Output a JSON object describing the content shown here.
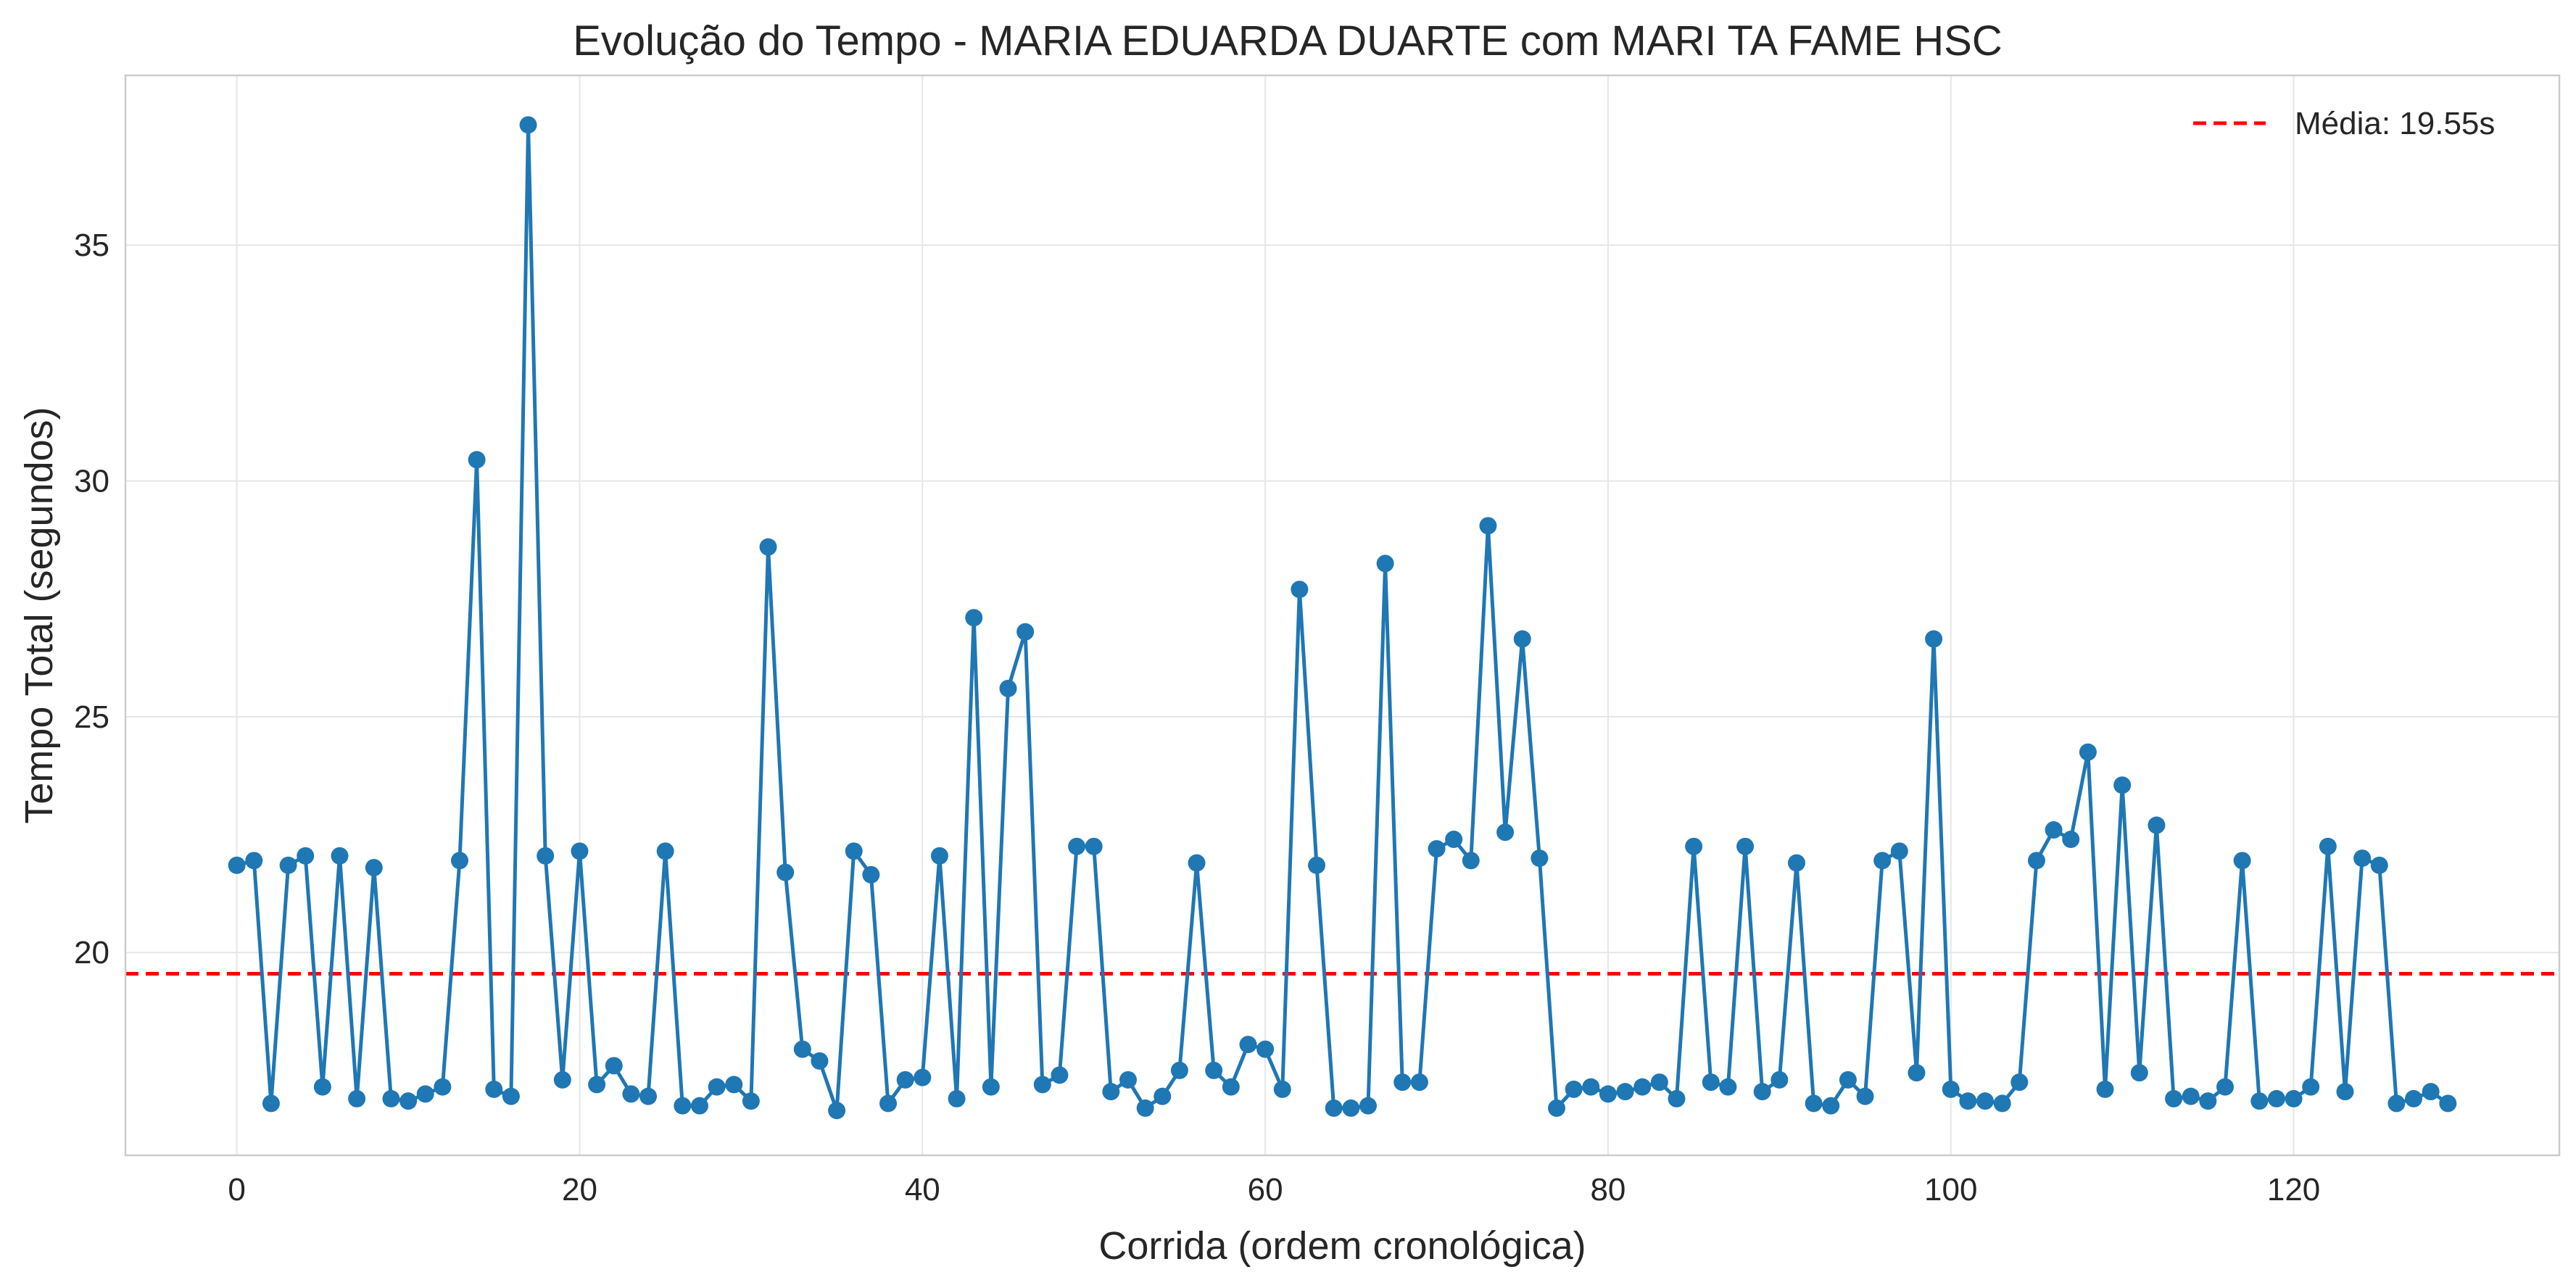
{
  "chart_data": {
    "type": "line",
    "title": "Evolução do Tempo - MARIA EDUARDA DUARTE com MARI TA FAME HSC",
    "xlabel": "Corrida (ordem cronológica)",
    "ylabel": "Tempo Total (segundos)",
    "xlim": [
      -6.5,
      135.5
    ],
    "ylim": [
      15.7,
      38.6
    ],
    "xticks": [
      0,
      20,
      40,
      60,
      80,
      100,
      120
    ],
    "yticks": [
      20,
      25,
      30,
      35
    ],
    "grid": true,
    "legend_position": "top-right",
    "series": [
      {
        "color": "#1f77b4",
        "x": [
          0,
          1,
          2,
          3,
          4,
          5,
          6,
          7,
          8,
          9,
          10,
          11,
          12,
          13,
          14,
          15,
          16,
          17,
          18,
          19,
          20,
          21,
          22,
          23,
          24,
          25,
          26,
          27,
          28,
          29,
          30,
          31,
          32,
          33,
          34,
          35,
          36,
          37,
          38,
          39,
          40,
          41,
          42,
          43,
          44,
          45,
          46,
          47,
          48,
          49,
          50,
          51,
          52,
          53,
          54,
          55,
          56,
          57,
          58,
          59,
          60,
          61,
          62,
          63,
          64,
          65,
          66,
          67,
          68,
          69,
          70,
          71,
          72,
          73,
          74,
          75,
          76,
          77,
          78,
          79,
          80,
          81,
          82,
          83,
          84,
          85,
          86,
          87,
          88,
          89,
          90,
          91,
          92,
          93,
          94,
          95,
          96,
          97,
          98,
          99,
          100,
          101,
          102,
          103,
          104,
          105,
          106,
          107,
          108,
          109,
          110,
          111,
          112,
          113,
          114,
          115,
          116,
          117,
          118,
          119,
          120,
          121,
          122,
          123,
          124,
          125,
          126,
          127,
          128,
          129
        ],
        "y": [
          21.85,
          21.95,
          16.8,
          21.85,
          22.05,
          17.15,
          22.05,
          16.9,
          21.8,
          16.9,
          16.85,
          17.0,
          17.15,
          21.95,
          30.45,
          17.1,
          16.95,
          37.55,
          22.05,
          17.3,
          22.15,
          17.2,
          17.6,
          17.0,
          16.95,
          22.15,
          16.75,
          16.75,
          17.15,
          17.2,
          16.85,
          28.6,
          21.7,
          17.95,
          17.7,
          16.65,
          22.15,
          21.65,
          16.8,
          17.3,
          17.35,
          22.05,
          16.9,
          27.1,
          17.15,
          25.6,
          26.8,
          17.2,
          17.4,
          22.25,
          22.25,
          17.05,
          17.3,
          16.7,
          16.95,
          17.5,
          21.9,
          17.5,
          17.15,
          18.05,
          17.95,
          17.1,
          27.7,
          21.85,
          16.7,
          16.7,
          16.75,
          28.25,
          17.25,
          17.25,
          22.2,
          22.4,
          21.95,
          29.05,
          22.55,
          26.65,
          22.0,
          16.7,
          17.1,
          17.15,
          17.0,
          17.05,
          17.15,
          17.25,
          16.9,
          22.25,
          17.25,
          17.15,
          22.25,
          17.05,
          17.3,
          21.9,
          16.8,
          16.75,
          17.3,
          16.95,
          21.95,
          22.15,
          17.45,
          26.65,
          17.1,
          16.85,
          16.85,
          16.8,
          17.25,
          21.95,
          22.6,
          22.4,
          24.25,
          17.1,
          23.55,
          17.45,
          22.7,
          16.9,
          16.95,
          16.85,
          17.15,
          21.95,
          16.85,
          16.9,
          16.9,
          17.15,
          22.25,
          17.05,
          22.0,
          21.85,
          16.8,
          16.9,
          17.05,
          16.8
        ]
      }
    ],
    "reference_line": {
      "value": 19.55,
      "color": "#ff0000",
      "label": "Média: 19.55s"
    }
  }
}
